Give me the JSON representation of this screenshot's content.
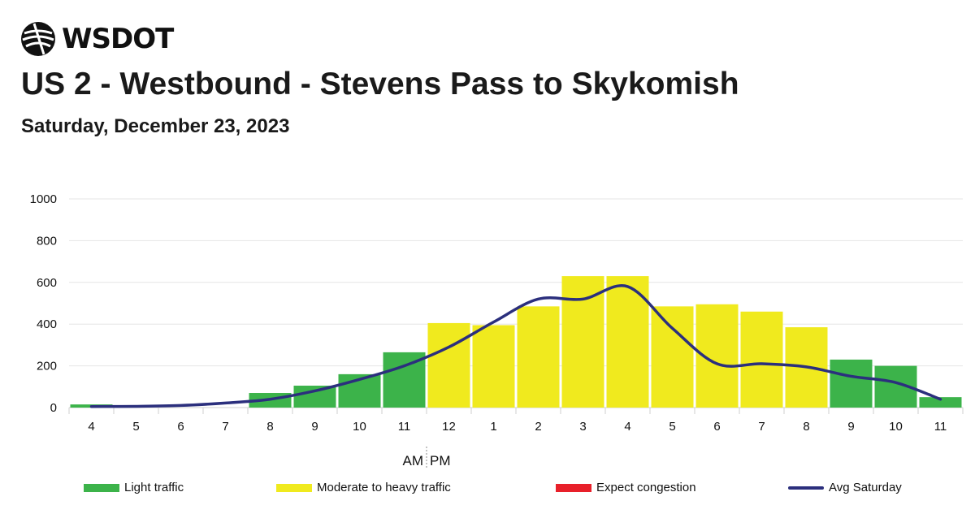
{
  "header": {
    "logo_text": "WSDOT",
    "title": "US 2 - Westbound - Stevens Pass to Skykomish",
    "subtitle": "Saturday, December 23, 2023"
  },
  "colors": {
    "light": "#3cb34a",
    "moderate": "#f0ea1e",
    "congestion": "#e8202a",
    "avg_line": "#2b2f7d"
  },
  "legend": [
    {
      "key": "light",
      "label": "Light traffic"
    },
    {
      "key": "moderate",
      "label": "Moderate to heavy traffic"
    },
    {
      "key": "congestion",
      "label": "Expect congestion"
    },
    {
      "key": "avg_line",
      "label": "Avg Saturday"
    }
  ],
  "chart_data": {
    "type": "bar",
    "categories": [
      "4",
      "5",
      "6",
      "7",
      "8",
      "9",
      "10",
      "11",
      "12",
      "1",
      "2",
      "3",
      "4",
      "5",
      "6",
      "7",
      "8",
      "9",
      "10",
      "11"
    ],
    "series": [
      {
        "name": "Light traffic",
        "values": [
          15,
          0,
          0,
          0,
          70,
          105,
          160,
          265,
          0,
          0,
          0,
          0,
          0,
          0,
          0,
          0,
          0,
          230,
          200,
          50
        ]
      },
      {
        "name": "Moderate to heavy traffic",
        "values": [
          0,
          0,
          0,
          0,
          0,
          0,
          0,
          0,
          405,
          395,
          485,
          630,
          630,
          485,
          495,
          460,
          385,
          0,
          0,
          0
        ]
      },
      {
        "name": "Avg Saturday",
        "type": "line",
        "values": [
          5,
          6,
          10,
          22,
          40,
          80,
          135,
          200,
          290,
          410,
          520,
          520,
          580,
          380,
          210,
          210,
          195,
          150,
          120,
          40
        ]
      }
    ],
    "yticks": [
      0,
      200,
      400,
      600,
      800,
      1000
    ],
    "ylim": [
      0,
      1000
    ],
    "ampm_label": {
      "am": "AM",
      "pm": "PM"
    },
    "grid": true,
    "legend_position": "bottom"
  }
}
